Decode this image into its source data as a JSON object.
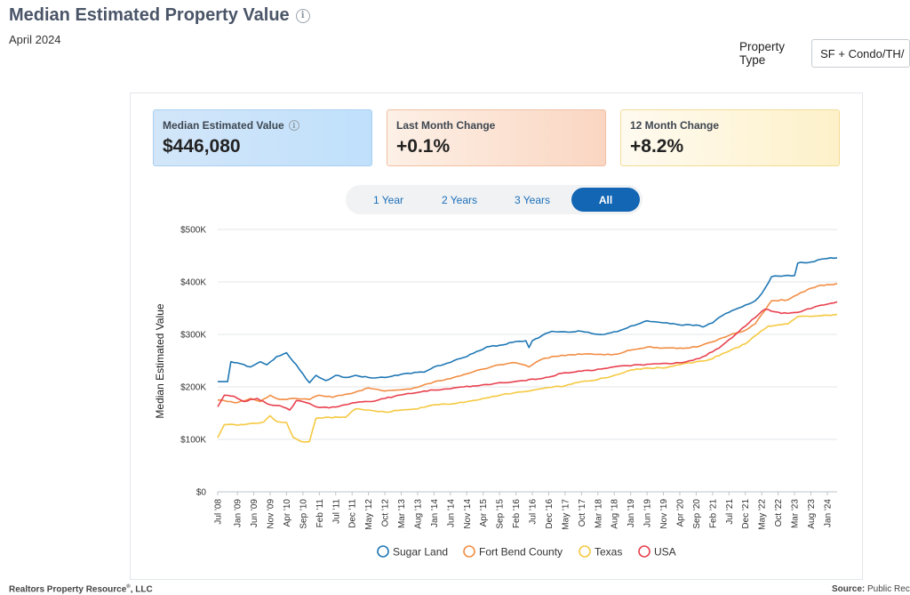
{
  "header": {
    "title": "Median Estimated Property Value",
    "info_icon": "info-circle-icon",
    "subtitle": "April 2024"
  },
  "property_type": {
    "label": "Property Type",
    "value": "SF + Condo/TH/"
  },
  "cards": {
    "median": {
      "label": "Median Estimated Value",
      "value": "$446,080",
      "icon": "info-circle-icon"
    },
    "last_month": {
      "label": "Last Month Change",
      "value": "+0.1%"
    },
    "twelve_month": {
      "label": "12 Month Change",
      "value": "+8.2%"
    }
  },
  "range_buttons": [
    {
      "label": "1 Year",
      "active": false
    },
    {
      "label": "2 Years",
      "active": false
    },
    {
      "label": "3 Years",
      "active": false
    },
    {
      "label": "All",
      "active": true
    }
  ],
  "footer": {
    "left": "Realtors Property Resource",
    "left_mark": "®",
    "left_suffix": ", LLC",
    "right_label": "Source:",
    "right_value": "Public Rec"
  },
  "chart_data": {
    "type": "line",
    "title": "",
    "xlabel": "",
    "ylabel": "Median Estimated Value",
    "ylim": [
      0,
      500000
    ],
    "y_ticks": [
      {
        "value": 0,
        "label": "$0"
      },
      {
        "value": 100000,
        "label": "$100K"
      },
      {
        "value": 200000,
        "label": "$200K"
      },
      {
        "value": 300000,
        "label": "$300K"
      },
      {
        "value": 400000,
        "label": "$400K"
      },
      {
        "value": 500000,
        "label": "$500K"
      }
    ],
    "x_start": "2008-07",
    "x_end": "2024-04",
    "x_ticks": [
      "Jul '08",
      "Jan '09",
      "Jun '09",
      "Nov '09",
      "Apr '10",
      "Sep '10",
      "Feb '11",
      "Jul '11",
      "Dec '11",
      "May '12",
      "Oct '12",
      "Mar '13",
      "Aug '13",
      "Jan '14",
      "Jun '14",
      "Nov '14",
      "Apr '15",
      "Sep '15",
      "Feb '16",
      "Jul '16",
      "Dec '16",
      "May '17",
      "Oct '17",
      "Mar '18",
      "Aug '18",
      "Jan '19",
      "Jun '19",
      "Nov '19",
      "Apr '20",
      "Sep '20",
      "Feb '21",
      "Jul '21",
      "Dec '21",
      "May '22",
      "Oct '22",
      "Mar '23",
      "Aug '23",
      "Jan '24"
    ],
    "grid": true,
    "legend_position": "bottom",
    "series": [
      {
        "name": "Sugar Land",
        "color": "#1f77b4",
        "points": [
          [
            "2008-07",
            210000
          ],
          [
            "2008-10",
            210000
          ],
          [
            "2008-11",
            248000
          ],
          [
            "2009-02",
            244000
          ],
          [
            "2009-05",
            238000
          ],
          [
            "2009-08",
            248000
          ],
          [
            "2009-10",
            242000
          ],
          [
            "2010-01",
            258000
          ],
          [
            "2010-04",
            265000
          ],
          [
            "2010-07",
            242000
          ],
          [
            "2010-10",
            215000
          ],
          [
            "2010-11",
            208000
          ],
          [
            "2011-01",
            222000
          ],
          [
            "2011-04",
            212000
          ],
          [
            "2011-07",
            222000
          ],
          [
            "2011-10",
            218000
          ],
          [
            "2012-01",
            222000
          ],
          [
            "2012-05",
            218000
          ],
          [
            "2012-10",
            218000
          ],
          [
            "2013-01",
            222000
          ],
          [
            "2013-05",
            226000
          ],
          [
            "2013-10",
            228000
          ],
          [
            "2014-01",
            238000
          ],
          [
            "2014-05",
            245000
          ],
          [
            "2014-10",
            256000
          ],
          [
            "2015-01",
            264000
          ],
          [
            "2015-05",
            276000
          ],
          [
            "2015-10",
            280000
          ],
          [
            "2016-01",
            285000
          ],
          [
            "2016-05",
            288000
          ],
          [
            "2016-06",
            275000
          ],
          [
            "2016-07",
            288000
          ],
          [
            "2016-10",
            298000
          ],
          [
            "2017-01",
            306000
          ],
          [
            "2017-05",
            305000
          ],
          [
            "2017-10",
            306000
          ],
          [
            "2018-01",
            302000
          ],
          [
            "2018-05",
            300000
          ],
          [
            "2018-10",
            308000
          ],
          [
            "2019-01",
            316000
          ],
          [
            "2019-06",
            326000
          ],
          [
            "2019-11",
            322000
          ],
          [
            "2020-04",
            318000
          ],
          [
            "2020-09",
            318000
          ],
          [
            "2020-11",
            314000
          ],
          [
            "2021-02",
            322000
          ],
          [
            "2021-05",
            336000
          ],
          [
            "2021-09",
            348000
          ],
          [
            "2021-12",
            356000
          ],
          [
            "2022-03",
            364000
          ],
          [
            "2022-05",
            378000
          ],
          [
            "2022-06",
            388000
          ],
          [
            "2022-08",
            410000
          ],
          [
            "2022-12",
            412000
          ],
          [
            "2023-03",
            412000
          ],
          [
            "2023-04",
            436000
          ],
          [
            "2023-08",
            438000
          ],
          [
            "2023-12",
            444000
          ],
          [
            "2024-04",
            446000
          ]
        ]
      },
      {
        "name": "Fort Bend County",
        "color": "#f28e45",
        "points": [
          [
            "2008-07",
            175000
          ],
          [
            "2008-10",
            172000
          ],
          [
            "2009-01",
            170000
          ],
          [
            "2009-05",
            178000
          ],
          [
            "2009-08",
            172000
          ],
          [
            "2009-11",
            184000
          ],
          [
            "2010-02",
            176000
          ],
          [
            "2010-07",
            178000
          ],
          [
            "2010-11",
            176000
          ],
          [
            "2011-02",
            184000
          ],
          [
            "2011-06",
            180000
          ],
          [
            "2011-10",
            186000
          ],
          [
            "2012-01",
            190000
          ],
          [
            "2012-05",
            198000
          ],
          [
            "2012-10",
            192000
          ],
          [
            "2013-02",
            194000
          ],
          [
            "2013-06",
            196000
          ],
          [
            "2013-10",
            204000
          ],
          [
            "2014-03",
            212000
          ],
          [
            "2014-07",
            218000
          ],
          [
            "2014-11",
            225000
          ],
          [
            "2015-04",
            234000
          ],
          [
            "2015-09",
            242000
          ],
          [
            "2016-02",
            246000
          ],
          [
            "2016-06",
            238000
          ],
          [
            "2016-09",
            250000
          ],
          [
            "2017-01",
            258000
          ],
          [
            "2017-06",
            261000
          ],
          [
            "2017-10",
            262000
          ],
          [
            "2018-03",
            262000
          ],
          [
            "2018-08",
            262000
          ],
          [
            "2019-01",
            270000
          ],
          [
            "2019-06",
            276000
          ],
          [
            "2019-11",
            274000
          ],
          [
            "2020-04",
            274000
          ],
          [
            "2020-09",
            276000
          ],
          [
            "2021-02",
            286000
          ],
          [
            "2021-07",
            298000
          ],
          [
            "2021-12",
            308000
          ],
          [
            "2022-03",
            320000
          ],
          [
            "2022-06",
            346000
          ],
          [
            "2022-08",
            364000
          ],
          [
            "2023-01",
            366000
          ],
          [
            "2023-05",
            380000
          ],
          [
            "2023-10",
            392000
          ],
          [
            "2024-04",
            397000
          ]
        ]
      },
      {
        "name": "Texas",
        "color": "#f5c942",
        "points": [
          [
            "2008-07",
            103000
          ],
          [
            "2008-09",
            128000
          ],
          [
            "2009-03",
            128000
          ],
          [
            "2009-09",
            133000
          ],
          [
            "2009-11",
            145000
          ],
          [
            "2010-01",
            134000
          ],
          [
            "2010-04",
            132000
          ],
          [
            "2010-06",
            104000
          ],
          [
            "2010-09",
            95000
          ],
          [
            "2010-11",
            96000
          ],
          [
            "2011-01",
            140000
          ],
          [
            "2011-05",
            142000
          ],
          [
            "2011-10",
            142000
          ],
          [
            "2012-01",
            158000
          ],
          [
            "2012-05",
            156000
          ],
          [
            "2012-10",
            152000
          ],
          [
            "2013-02",
            155000
          ],
          [
            "2013-08",
            158000
          ],
          [
            "2014-01",
            166000
          ],
          [
            "2014-07",
            168000
          ],
          [
            "2015-01",
            174000
          ],
          [
            "2015-07",
            182000
          ],
          [
            "2016-01",
            188000
          ],
          [
            "2016-06",
            192000
          ],
          [
            "2016-11",
            198000
          ],
          [
            "2017-05",
            202000
          ],
          [
            "2017-10",
            210000
          ],
          [
            "2018-03",
            214000
          ],
          [
            "2018-08",
            222000
          ],
          [
            "2019-01",
            232000
          ],
          [
            "2019-06",
            236000
          ],
          [
            "2019-11",
            236000
          ],
          [
            "2020-04",
            242000
          ],
          [
            "2020-09",
            248000
          ],
          [
            "2021-01",
            252000
          ],
          [
            "2021-07",
            268000
          ],
          [
            "2021-12",
            282000
          ],
          [
            "2022-04",
            302000
          ],
          [
            "2022-07",
            316000
          ],
          [
            "2023-01",
            320000
          ],
          [
            "2023-04",
            334000
          ],
          [
            "2023-09",
            335000
          ],
          [
            "2024-04",
            338000
          ]
        ]
      },
      {
        "name": "USA",
        "color": "#e8414f",
        "points": [
          [
            "2008-07",
            162000
          ],
          [
            "2008-09",
            184000
          ],
          [
            "2008-12",
            182000
          ],
          [
            "2009-03",
            172000
          ],
          [
            "2009-07",
            178000
          ],
          [
            "2009-11",
            166000
          ],
          [
            "2010-02",
            164000
          ],
          [
            "2010-05",
            156000
          ],
          [
            "2010-07",
            174000
          ],
          [
            "2010-10",
            170000
          ],
          [
            "2011-01",
            162000
          ],
          [
            "2011-05",
            160000
          ],
          [
            "2011-10",
            166000
          ],
          [
            "2012-01",
            170000
          ],
          [
            "2012-06",
            172000
          ],
          [
            "2012-10",
            178000
          ],
          [
            "2013-04",
            186000
          ],
          [
            "2013-10",
            192000
          ],
          [
            "2014-04",
            196000
          ],
          [
            "2014-10",
            200000
          ],
          [
            "2015-04",
            204000
          ],
          [
            "2015-10",
            208000
          ],
          [
            "2016-04",
            212000
          ],
          [
            "2016-10",
            216000
          ],
          [
            "2017-04",
            226000
          ],
          [
            "2017-10",
            230000
          ],
          [
            "2018-04",
            234000
          ],
          [
            "2018-10",
            240000
          ],
          [
            "2019-04",
            242000
          ],
          [
            "2019-10",
            244000
          ],
          [
            "2020-04",
            246000
          ],
          [
            "2020-10",
            254000
          ],
          [
            "2021-04",
            274000
          ],
          [
            "2021-09",
            300000
          ],
          [
            "2022-02",
            328000
          ],
          [
            "2022-06",
            348000
          ],
          [
            "2022-11",
            340000
          ],
          [
            "2023-04",
            342000
          ],
          [
            "2023-09",
            352000
          ],
          [
            "2024-04",
            362000
          ]
        ]
      }
    ]
  }
}
